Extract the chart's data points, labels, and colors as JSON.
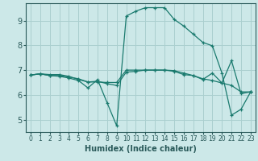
{
  "title": "",
  "xlabel": "Humidex (Indice chaleur)",
  "bg_color": "#cce8e8",
  "line_color": "#1a7a6e",
  "grid_color": "#aacfcf",
  "xlim": [
    -0.5,
    23.5
  ],
  "ylim": [
    4.5,
    9.7
  ],
  "yticks": [
    5,
    6,
    7,
    8,
    9
  ],
  "xticks": [
    0,
    1,
    2,
    3,
    4,
    5,
    6,
    7,
    8,
    9,
    10,
    11,
    12,
    13,
    14,
    15,
    16,
    17,
    18,
    19,
    20,
    21,
    22,
    23
  ],
  "line1_x": [
    0,
    1,
    2,
    3,
    4,
    5,
    6,
    7,
    8,
    9,
    10,
    11,
    12,
    13,
    14,
    15,
    16,
    17,
    18,
    19,
    20,
    21,
    22,
    23
  ],
  "line1_y": [
    6.8,
    6.85,
    6.82,
    6.82,
    6.75,
    6.62,
    6.52,
    6.52,
    6.5,
    6.5,
    7.0,
    7.0,
    7.0,
    7.0,
    7.0,
    6.98,
    6.88,
    6.78,
    6.65,
    6.58,
    6.48,
    6.38,
    6.12,
    6.12
  ],
  "line2_x": [
    0,
    1,
    2,
    3,
    4,
    5,
    6,
    7,
    8,
    9,
    10,
    11,
    12,
    13,
    14,
    15,
    16,
    17,
    18,
    19,
    20,
    21,
    22,
    23
  ],
  "line2_y": [
    6.8,
    6.85,
    6.78,
    6.75,
    6.68,
    6.58,
    6.28,
    6.62,
    5.68,
    4.75,
    9.18,
    9.38,
    9.52,
    9.52,
    9.52,
    9.05,
    8.78,
    8.45,
    8.12,
    7.98,
    6.88,
    5.18,
    5.42,
    6.12
  ],
  "line3_x": [
    0,
    1,
    2,
    3,
    4,
    5,
    6,
    7,
    8,
    9,
    10,
    11,
    12,
    13,
    14,
    15,
    16,
    17,
    18,
    19,
    20,
    21,
    22,
    23
  ],
  "line3_y": [
    6.8,
    6.85,
    6.78,
    6.78,
    6.72,
    6.65,
    6.52,
    6.55,
    6.45,
    6.38,
    6.92,
    6.95,
    7.0,
    7.0,
    7.0,
    6.95,
    6.82,
    6.78,
    6.62,
    6.88,
    6.48,
    7.38,
    6.05,
    6.12
  ]
}
